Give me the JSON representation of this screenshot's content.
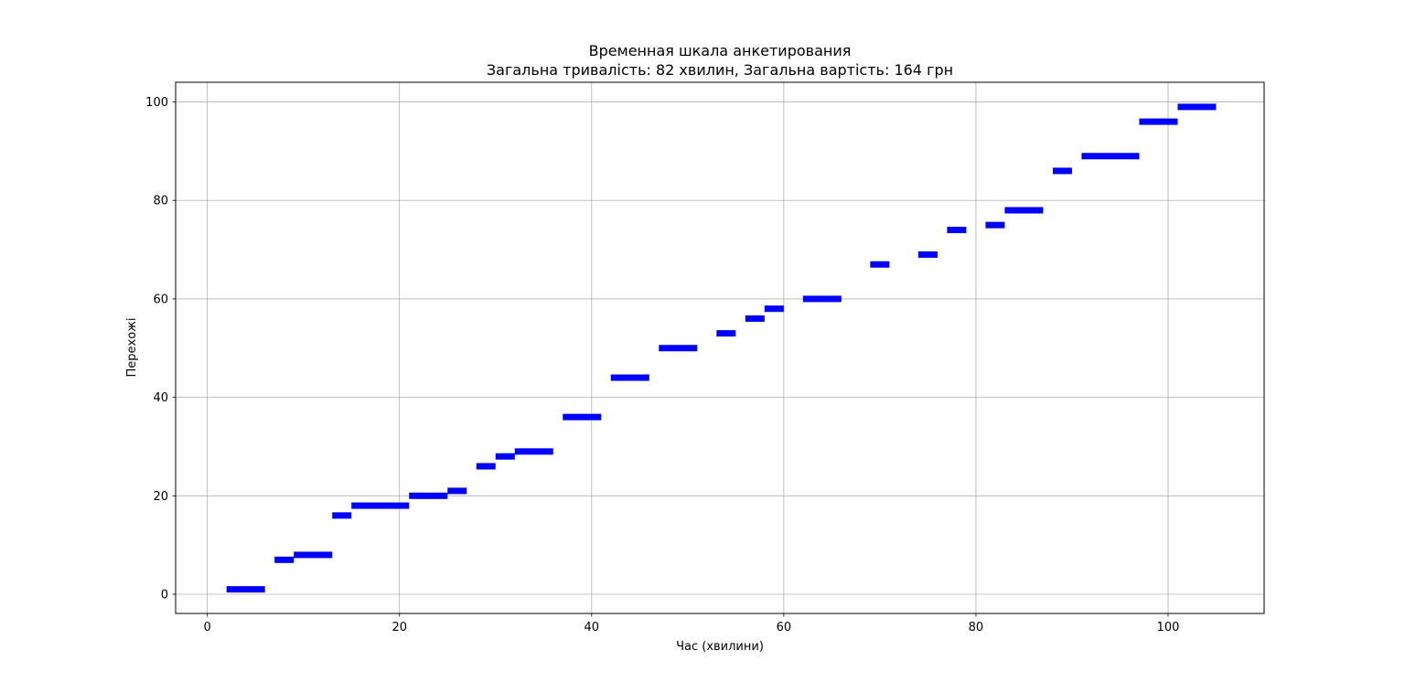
{
  "chart_data": {
    "type": "timeline",
    "title": "Временная шкала анкетирования",
    "subtitle": "Загальна тривалість: 82 хвилин, Загальна вартість: 164 грн",
    "xlabel": "Час (хвилини)",
    "ylabel": "Перехожі",
    "xlim": [
      -3.3,
      110
    ],
    "ylim": [
      -3.9,
      104
    ],
    "xticks": [
      0,
      20,
      40,
      60,
      80,
      100
    ],
    "yticks": [
      0,
      20,
      40,
      60,
      80,
      100
    ],
    "grid": true,
    "bar_color": "#0000ff",
    "bars": [
      {
        "y": 1,
        "start": 2,
        "end": 6
      },
      {
        "y": 7,
        "start": 7,
        "end": 9
      },
      {
        "y": 8,
        "start": 9,
        "end": 13
      },
      {
        "y": 16,
        "start": 13,
        "end": 15
      },
      {
        "y": 18,
        "start": 15,
        "end": 21
      },
      {
        "y": 20,
        "start": 21,
        "end": 25
      },
      {
        "y": 21,
        "start": 25,
        "end": 27
      },
      {
        "y": 26,
        "start": 28,
        "end": 30
      },
      {
        "y": 28,
        "start": 30,
        "end": 32
      },
      {
        "y": 29,
        "start": 32,
        "end": 36
      },
      {
        "y": 36,
        "start": 37,
        "end": 41
      },
      {
        "y": 44,
        "start": 42,
        "end": 46
      },
      {
        "y": 50,
        "start": 47,
        "end": 51
      },
      {
        "y": 53,
        "start": 53,
        "end": 55
      },
      {
        "y": 56,
        "start": 56,
        "end": 58
      },
      {
        "y": 58,
        "start": 58,
        "end": 60
      },
      {
        "y": 60,
        "start": 62,
        "end": 66
      },
      {
        "y": 67,
        "start": 69,
        "end": 71
      },
      {
        "y": 69,
        "start": 74,
        "end": 76
      },
      {
        "y": 74,
        "start": 77,
        "end": 79
      },
      {
        "y": 75,
        "start": 81,
        "end": 83
      },
      {
        "y": 78,
        "start": 83,
        "end": 87
      },
      {
        "y": 86,
        "start": 88,
        "end": 90
      },
      {
        "y": 89,
        "start": 91,
        "end": 97
      },
      {
        "y": 96,
        "start": 97,
        "end": 101
      },
      {
        "y": 99,
        "start": 101,
        "end": 105
      }
    ]
  }
}
